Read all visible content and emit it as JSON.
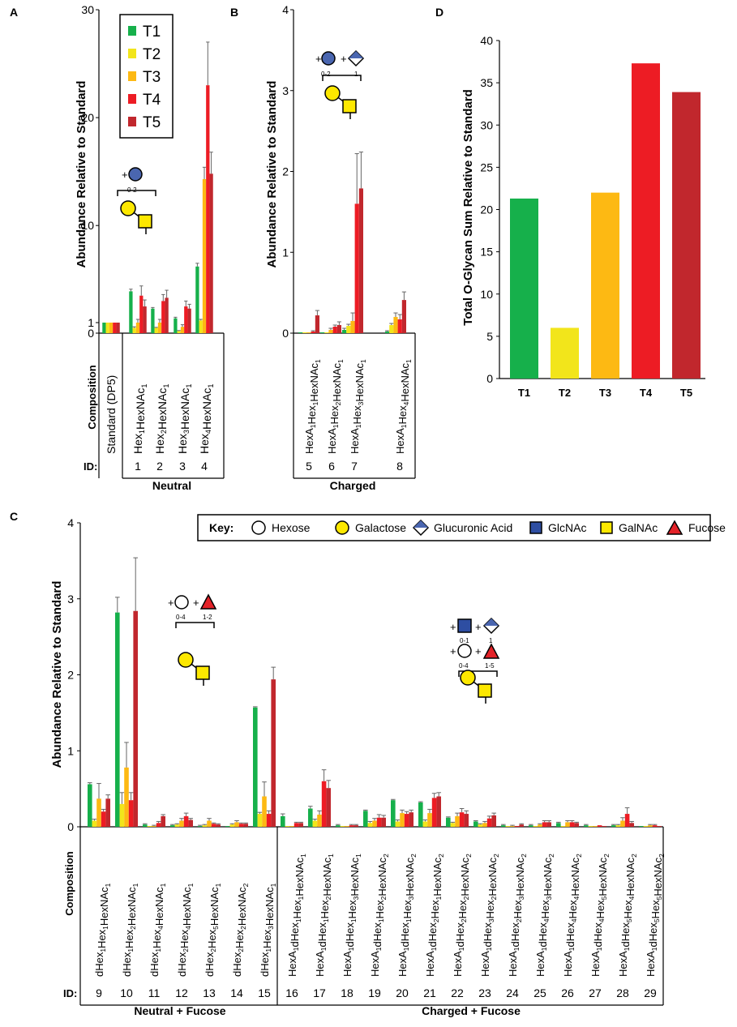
{
  "colors": {
    "T1": "#16b04b",
    "T2": "#f2e51b",
    "T3": "#fdb913",
    "T4": "#ed1c24",
    "T5": "#c1272d",
    "hexose": "#ffffff",
    "galactose": "#fde800",
    "glucuronic": "#4a66b0",
    "glcnac": "#2e4ea2",
    "galnac": "#fde800",
    "fucose": "#e32228"
  },
  "panels": {
    "A": "A",
    "B": "B",
    "C": "C",
    "D": "D"
  },
  "legend": {
    "series": [
      "T1",
      "T2",
      "T3",
      "T4",
      "T5"
    ]
  },
  "labels": {
    "composition": "Composition",
    "id": "ID:",
    "ylabel": "Abundance Relative to Standard",
    "d_ylabel": "Total O-Glycan Sum  Relative to Standard",
    "neutral": "Neutral",
    "charged": "Charged",
    "neutral_fucose": "Neutral + Fucose",
    "charged_fucose": "Charged + Fucose"
  },
  "glycan_notes": {
    "a_plus": "+",
    "a_range": "0-2",
    "b_plus1": "+",
    "b_plus2": "+",
    "b_range1": "0-2",
    "b_range2": "1",
    "c1_plus1": "+",
    "c1_plus2": "+",
    "c1_range1": "0-4",
    "c1_range2": "1-2",
    "c2_plus1": "+",
    "c2_plus2": "+",
    "c2_plus3": "+",
    "c2_plus4": "+",
    "c2_range1": "0-1",
    "c2_range2": "1",
    "c2_range3": "0-4",
    "c2_range4": "1-5"
  },
  "key": {
    "title": "Key:",
    "items": [
      "Hexose",
      "Galactose",
      "Glucuronic Acid",
      "GlcNAc",
      "GalNAc",
      "Fucose"
    ]
  },
  "chart_data": [
    {
      "panel": "A",
      "type": "bar",
      "ylabel": "Abundance Relative to Standard",
      "ylim": [
        0,
        30
      ],
      "yticks": [
        0,
        1,
        10,
        20,
        30
      ],
      "categories": [
        {
          "id": "",
          "parts": [
            [
              "Standard (DP5)",
              ""
            ]
          ]
        },
        {
          "id": "1",
          "parts": [
            [
              "Hex",
              "1"
            ],
            [
              "HexNAc",
              "1"
            ]
          ]
        },
        {
          "id": "2",
          "parts": [
            [
              "Hex",
              "2"
            ],
            [
              "HexNAc",
              "1"
            ]
          ]
        },
        {
          "id": "3",
          "parts": [
            [
              "Hex",
              "3"
            ],
            [
              "HexNAc",
              "1"
            ]
          ]
        },
        {
          "id": "4",
          "parts": [
            [
              "Hex",
              "4"
            ],
            [
              "HexNAc",
              "1"
            ]
          ]
        }
      ],
      "series": [
        {
          "name": "T1",
          "values": [
            1,
            3.9,
            2.3,
            1.4,
            6.2
          ],
          "errors": [
            0,
            0.2,
            0.1,
            0.1,
            0.3
          ]
        },
        {
          "name": "T2",
          "values": [
            1,
            0.5,
            0.5,
            0.2,
            1.2
          ],
          "errors": [
            0,
            0.1,
            0.05,
            0.05,
            0.1
          ]
        },
        {
          "name": "T3",
          "values": [
            1,
            1.0,
            1.0,
            0.6,
            14.3
          ],
          "errors": [
            0,
            0.3,
            0.3,
            0.2,
            1.1
          ]
        },
        {
          "name": "T4",
          "values": [
            1,
            3.5,
            3.0,
            2.5,
            23
          ],
          "errors": [
            0,
            0.9,
            0.6,
            0.5,
            4
          ]
        },
        {
          "name": "T5",
          "values": [
            1,
            2.5,
            3.3,
            2.3,
            14.8
          ],
          "errors": [
            0,
            0.6,
            0.7,
            0.4,
            2
          ]
        }
      ],
      "group": "Neutral"
    },
    {
      "panel": "B",
      "type": "bar",
      "ylabel": "Abundance Relative to Standard",
      "ylim": [
        0,
        4
      ],
      "yticks": [
        0,
        1,
        2,
        3,
        4
      ],
      "categories": [
        {
          "id": "5",
          "parts": [
            [
              "HexA",
              "1"
            ],
            [
              "Hex",
              "1"
            ],
            [
              "HexNAc",
              "1"
            ]
          ]
        },
        {
          "id": "6",
          "parts": [
            [
              "HexA",
              "1"
            ],
            [
              "Hex",
              "2"
            ],
            [
              "HexNAc",
              "1"
            ]
          ]
        },
        {
          "id": "7",
          "parts": [
            [
              "HexA",
              "1"
            ],
            [
              "Hex",
              "3"
            ],
            [
              "HexNAc",
              "1"
            ]
          ]
        },
        {
          "id": "8",
          "parts": [
            [
              "HexA",
              "1"
            ],
            [
              "Hex",
              "4"
            ],
            [
              "HexNAc",
              "1"
            ]
          ]
        }
      ],
      "series": [
        {
          "name": "T1",
          "values": [
            0.01,
            0.01,
            0.04,
            0.02
          ],
          "errors": [
            0,
            0,
            0.02,
            0.01
          ]
        },
        {
          "name": "T2",
          "values": [
            0.01,
            0.01,
            0.09,
            0.1
          ],
          "errors": [
            0,
            0,
            0.02,
            0.02
          ]
        },
        {
          "name": "T3",
          "values": [
            0.01,
            0.04,
            0.15,
            0.2
          ],
          "errors": [
            0,
            0.02,
            0.1,
            0.05
          ]
        },
        {
          "name": "T4",
          "values": [
            0.02,
            0.08,
            1.6,
            0.17
          ],
          "errors": [
            0.01,
            0.02,
            0.62,
            0.06
          ]
        },
        {
          "name": "T5",
          "values": [
            0.22,
            0.1,
            1.79,
            0.41
          ],
          "errors": [
            0.06,
            0.04,
            0.45,
            0.1
          ]
        }
      ],
      "group": "Charged"
    },
    {
      "panel": "C",
      "type": "bar",
      "ylabel": "Abundance Relative to Standard",
      "ylim": [
        0,
        4
      ],
      "yticks": [
        0,
        1,
        2,
        3,
        4
      ],
      "categories": [
        {
          "id": "9",
          "parts": [
            [
              "dHex",
              "1"
            ],
            [
              "Hex",
              "1"
            ],
            [
              "HexNAc",
              "1"
            ]
          ]
        },
        {
          "id": "10",
          "parts": [
            [
              "dHex",
              "1"
            ],
            [
              "Hex",
              "2"
            ],
            [
              "HexNAc",
              "1"
            ]
          ]
        },
        {
          "id": "11",
          "parts": [
            [
              "dHex",
              "1"
            ],
            [
              "Hex",
              "4"
            ],
            [
              "HexNAc",
              "1"
            ]
          ]
        },
        {
          "id": "12",
          "parts": [
            [
              "dHex",
              "2"
            ],
            [
              "Hex",
              "4"
            ],
            [
              "HexNAc",
              "1"
            ]
          ]
        },
        {
          "id": "13",
          "parts": [
            [
              "dHex",
              "2"
            ],
            [
              "Hex",
              "5"
            ],
            [
              "HexNAc",
              "1"
            ]
          ]
        },
        {
          "id": "14",
          "parts": [
            [
              "dHex",
              "2"
            ],
            [
              "Hex",
              "2"
            ],
            [
              "HexNAc",
              "2"
            ]
          ]
        },
        {
          "id": "15",
          "parts": [
            [
              "dHex",
              "1"
            ],
            [
              "Hex",
              "3"
            ],
            [
              "HexNAc",
              "1"
            ]
          ]
        },
        {
          "id": "16",
          "parts": [
            [
              "HexA",
              "1"
            ],
            [
              "dHex",
              "1"
            ],
            [
              "Hex",
              "1"
            ],
            [
              "HexNAc",
              "1"
            ]
          ]
        },
        {
          "id": "17",
          "parts": [
            [
              "HexA",
              "1"
            ],
            [
              "dHex",
              "1"
            ],
            [
              "Hex",
              "2"
            ],
            [
              "HexNAc",
              "1"
            ]
          ]
        },
        {
          "id": "18",
          "parts": [
            [
              "HexA",
              "1"
            ],
            [
              "dHex",
              "1"
            ],
            [
              "Hex",
              "3"
            ],
            [
              "HexNAc",
              "1"
            ]
          ]
        },
        {
          "id": "19",
          "parts": [
            [
              "HexA",
              "1"
            ],
            [
              "dHex",
              "1"
            ],
            [
              "Hex",
              "2"
            ],
            [
              "HexNAc",
              "2"
            ]
          ]
        },
        {
          "id": "20",
          "parts": [
            [
              "HexA",
              "1"
            ],
            [
              "dHex",
              "1"
            ],
            [
              "Hex",
              "3"
            ],
            [
              "HexNAc",
              "2"
            ]
          ]
        },
        {
          "id": "21",
          "parts": [
            [
              "HexA",
              "1"
            ],
            [
              "dHex",
              "2"
            ],
            [
              "Hex",
              "1"
            ],
            [
              "HexNAc",
              "2"
            ]
          ]
        },
        {
          "id": "22",
          "parts": [
            [
              "HexA",
              "1"
            ],
            [
              "dHex",
              "2"
            ],
            [
              "Hex",
              "2"
            ],
            [
              "HexNAc",
              "2"
            ]
          ]
        },
        {
          "id": "23",
          "parts": [
            [
              "HexA",
              "1"
            ],
            [
              "dHex",
              "3"
            ],
            [
              "Hex",
              "2"
            ],
            [
              "HexNAc",
              "2"
            ]
          ]
        },
        {
          "id": "24",
          "parts": [
            [
              "HexA",
              "1"
            ],
            [
              "dHex",
              "2"
            ],
            [
              "Hex",
              "3"
            ],
            [
              "HexNAc",
              "2"
            ]
          ]
        },
        {
          "id": "25",
          "parts": [
            [
              "HexA",
              "1"
            ],
            [
              "dHex",
              "4"
            ],
            [
              "Hex",
              "3"
            ],
            [
              "HexNAc",
              "2"
            ]
          ]
        },
        {
          "id": "26",
          "parts": [
            [
              "HexA",
              "1"
            ],
            [
              "dHex",
              "4"
            ],
            [
              "Hex",
              "4"
            ],
            [
              "HexNAc",
              "2"
            ]
          ]
        },
        {
          "id": "27",
          "parts": [
            [
              "HexA",
              "1"
            ],
            [
              "dHex",
              "4"
            ],
            [
              "Hex",
              "5"
            ],
            [
              "HexNAc",
              "2"
            ]
          ]
        },
        {
          "id": "28",
          "parts": [
            [
              "HexA",
              "1"
            ],
            [
              "dHex",
              "5"
            ],
            [
              "Hex",
              "4"
            ],
            [
              "HexNAc",
              "2"
            ]
          ]
        },
        {
          "id": "29",
          "parts": [
            [
              "HexA",
              "1"
            ],
            [
              "dHex",
              "5"
            ],
            [
              "Hex",
              "5"
            ],
            [
              "HexNAc",
              "2"
            ]
          ]
        }
      ],
      "series": [
        {
          "name": "T1",
          "values": [
            0.56,
            2.82,
            0.03,
            0.02,
            0.01,
            0.01,
            1.57,
            0.14,
            0.24,
            0.02,
            0.21,
            0.35,
            0.32,
            0.12,
            0.07,
            0.02,
            0.02,
            0.05,
            0.02,
            0.02,
            0.01
          ],
          "errors": [
            0.02,
            0.2,
            0.01,
            0.01,
            0.01,
            0,
            0.01,
            0.03,
            0.03,
            0.01,
            0.01,
            0.01,
            0.01,
            0.01,
            0.01,
            0.01,
            0.01,
            0.01,
            0.01,
            0.01,
            0
          ]
        },
        {
          "name": "T2",
          "values": [
            0.08,
            0.3,
            0.01,
            0.03,
            0.02,
            0.03,
            0.17,
            0.01,
            0.08,
            0.01,
            0.05,
            0.07,
            0.07,
            0.05,
            0.03,
            0.01,
            0.01,
            0.01,
            0.01,
            0.02,
            0.01
          ],
          "errors": [
            0.02,
            0.15,
            0,
            0.01,
            0.01,
            0.01,
            0.02,
            0,
            0.02,
            0,
            0.02,
            0.02,
            0.02,
            0.01,
            0.01,
            0,
            0,
            0,
            0,
            0.01,
            0
          ]
        },
        {
          "name": "T3",
          "values": [
            0.37,
            0.78,
            0.01,
            0.08,
            0.08,
            0.06,
            0.4,
            0.01,
            0.16,
            0.01,
            0.08,
            0.18,
            0.18,
            0.14,
            0.05,
            0.01,
            0.03,
            0.06,
            0.01,
            0.08,
            0.02
          ],
          "errors": [
            0.2,
            0.33,
            0.01,
            0.03,
            0.03,
            0.02,
            0.19,
            0,
            0.05,
            0,
            0.03,
            0.04,
            0.05,
            0.04,
            0.02,
            0.01,
            0.01,
            0.02,
            0,
            0.04,
            0.01
          ]
        },
        {
          "name": "T4",
          "values": [
            0.2,
            0.35,
            0.05,
            0.14,
            0.04,
            0.04,
            0.17,
            0.05,
            0.6,
            0.02,
            0.12,
            0.17,
            0.38,
            0.19,
            0.11,
            0.01,
            0.06,
            0.06,
            0.02,
            0.17,
            0.02
          ],
          "errors": [
            0.03,
            0.1,
            0.02,
            0.04,
            0.01,
            0.01,
            0.04,
            0.01,
            0.15,
            0.01,
            0.04,
            0.03,
            0.06,
            0.05,
            0.03,
            0,
            0.02,
            0.02,
            0,
            0.08,
            0.01
          ]
        },
        {
          "name": "T5",
          "values": [
            0.37,
            2.84,
            0.14,
            0.09,
            0.03,
            0.04,
            1.94,
            0.05,
            0.51,
            0.02,
            0.12,
            0.19,
            0.4,
            0.17,
            0.15,
            0.03,
            0.06,
            0.05,
            0.01,
            0.05,
            0.01
          ],
          "errors": [
            0.05,
            0.7,
            0.02,
            0.02,
            0.01,
            0.01,
            0.16,
            0.01,
            0.1,
            0.01,
            0.03,
            0.03,
            0.05,
            0.04,
            0.03,
            0.01,
            0.02,
            0.01,
            0,
            0.02,
            0
          ]
        }
      ],
      "groups": [
        "Neutral + Fucose",
        "Charged + Fucose"
      ]
    },
    {
      "panel": "D",
      "type": "bar",
      "ylabel": "Total O-Glycan Sum  Relative to Standard",
      "ylim": [
        0,
        40
      ],
      "yticks": [
        0,
        5,
        10,
        15,
        20,
        25,
        30,
        35,
        40
      ],
      "categories": [
        "T1",
        "T2",
        "T3",
        "T4",
        "T5"
      ],
      "values": [
        21.3,
        6.0,
        22.0,
        37.3,
        33.9
      ]
    }
  ]
}
